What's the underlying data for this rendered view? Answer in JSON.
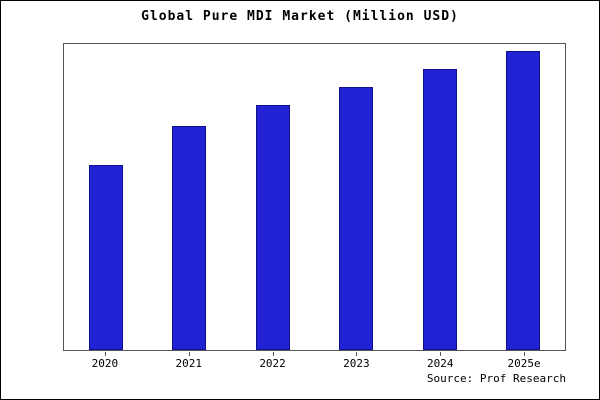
{
  "chart": {
    "title": "Global Pure MDI Market (Million USD)",
    "source": "Source: Prof Research",
    "bar_color": "#2121d6",
    "bar_border_color": "#10108a"
  },
  "chart_data": {
    "type": "bar",
    "categories": [
      "2020",
      "2021",
      "2022",
      "2023",
      "2024",
      "2025e"
    ],
    "values": [
      62,
      75,
      82,
      88,
      94,
      100
    ],
    "title": "Global Pure MDI Market (Million USD)",
    "xlabel": "",
    "ylabel": "",
    "ylim": [
      0,
      103
    ],
    "grid": false,
    "legend": "none"
  }
}
